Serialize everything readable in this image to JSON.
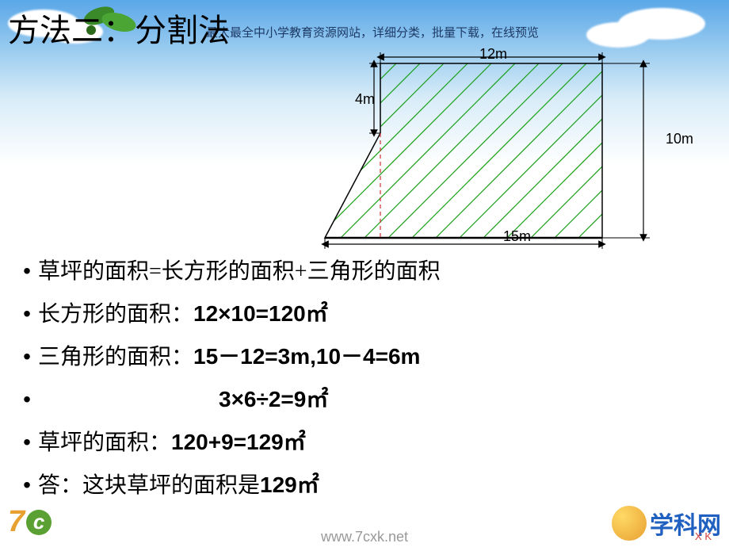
{
  "banner": "最大最全中小学教育资源网站，详细分类，批量下载，在线预览",
  "title": "方法二：分割法",
  "diagram": {
    "top_width": "12m",
    "left_upper": "4m",
    "right_height": "10m",
    "bottom_width": "15m",
    "outline_color": "#000000",
    "hatch_color": "#1aa01a",
    "dashed_color": "#d03030",
    "top_w": 280,
    "bot_w": 350,
    "full_h": 220,
    "notch_h": 88
  },
  "lines": [
    {
      "pre": "草坪的面积=长方形的面积+三角形的面积",
      "math": ""
    },
    {
      "pre": "长方形的面积：",
      "math": "12×10=120㎡"
    },
    {
      "pre": "三角形的面积：",
      "math": "15－12=3m,10－4=6m"
    },
    {
      "pre": "",
      "math": "3×6÷2=9㎡",
      "indent": 228
    },
    {
      "pre": "草坪的面积：",
      "math": "120+9=129㎡"
    },
    {
      "pre": "答：这块草坪的面积是",
      "math": "129㎡"
    }
  ],
  "footer_url": "www.7cxk.net",
  "logo": {
    "seven": "7",
    "c": "c",
    "xk_zh": "学科网",
    "xk_en": "X  K"
  }
}
